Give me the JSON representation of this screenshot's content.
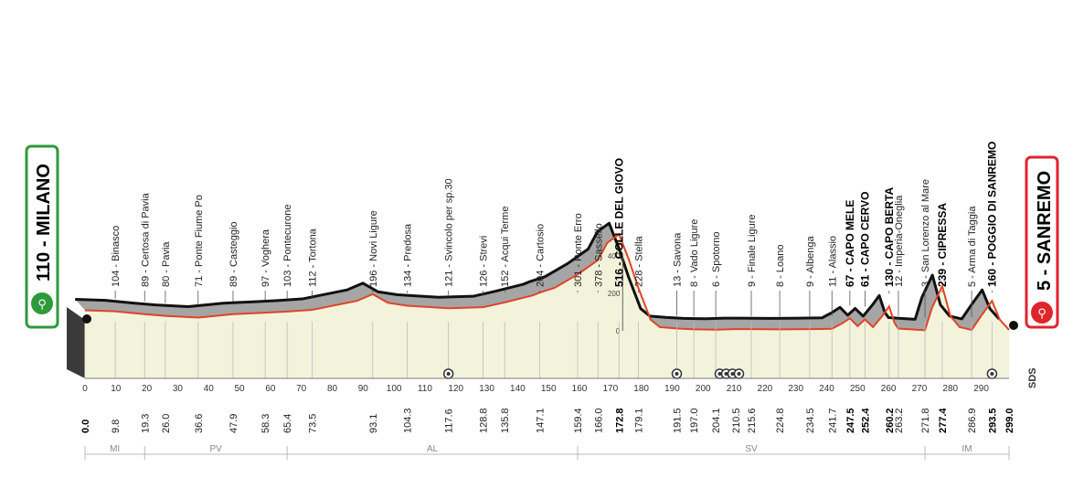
{
  "start": {
    "label": "110 - MILANO",
    "color": "#2e9a3a"
  },
  "finish": {
    "label": "5 - SANREMO",
    "color": "#e0242c"
  },
  "brand": "SDS",
  "altitude_ticks": [
    "400",
    "200",
    "0"
  ],
  "regions": [
    {
      "code": "MI",
      "from": 0,
      "to": 19.3
    },
    {
      "code": "PV",
      "from": 19.3,
      "to": 65.4
    },
    {
      "code": "AL",
      "from": 65.4,
      "to": 159.4
    },
    {
      "code": "SV",
      "from": 159.4,
      "to": 271.8
    },
    {
      "code": "IM",
      "from": 271.8,
      "to": 299
    }
  ],
  "chart_data": {
    "type": "area",
    "x_ticks": [
      0,
      10,
      20,
      30,
      40,
      50,
      60,
      70,
      80,
      90,
      100,
      110,
      120,
      130,
      140,
      150,
      160,
      170,
      180,
      190,
      200,
      210,
      220,
      230,
      240,
      250,
      260,
      270,
      280,
      290
    ],
    "cumulative_km": [
      {
        "km": "0.0",
        "bold": true
      },
      {
        "km": "9.8"
      },
      {
        "km": "19.3"
      },
      {
        "km": "26.0"
      },
      {
        "km": "36.6"
      },
      {
        "km": "47.9"
      },
      {
        "km": "58.3"
      },
      {
        "km": "65.4"
      },
      {
        "km": "73.5"
      },
      {
        "km": "93.1"
      },
      {
        "km": "104.3"
      },
      {
        "km": "117.6"
      },
      {
        "km": "128.8"
      },
      {
        "km": "135.8"
      },
      {
        "km": "147.1"
      },
      {
        "km": "159.4"
      },
      {
        "km": "166.0"
      },
      {
        "km": "172.8",
        "bold": true
      },
      {
        "km": "179.1"
      },
      {
        "km": "191.5"
      },
      {
        "km": "197.0"
      },
      {
        "km": "204.1"
      },
      {
        "km": "210.5"
      },
      {
        "km": "215.6"
      },
      {
        "km": "224.8"
      },
      {
        "km": "234.5"
      },
      {
        "km": "241.7"
      },
      {
        "km": "247.5",
        "bold": true
      },
      {
        "km": "252.4",
        "bold": true
      },
      {
        "km": "260.2",
        "bold": true
      },
      {
        "km": "263.2"
      },
      {
        "km": "271.8"
      },
      {
        "km": "277.4",
        "bold": true
      },
      {
        "km": "286.9"
      },
      {
        "km": "293.5",
        "bold": true
      },
      {
        "km": "299.0",
        "bold": true
      }
    ],
    "places": [
      {
        "km": 9.8,
        "label": "104 - Binasco"
      },
      {
        "km": 19.3,
        "label": "89 - Certosa di Pavia"
      },
      {
        "km": 26.0,
        "label": "80 - Pavia"
      },
      {
        "km": 36.6,
        "label": "71 - Ponte Fiume Po"
      },
      {
        "km": 47.9,
        "label": "89 - Casteggio"
      },
      {
        "km": 58.3,
        "label": "97 - Voghera"
      },
      {
        "km": 65.4,
        "label": "103 - Pontecurone"
      },
      {
        "km": 73.5,
        "label": "112 - Tortona"
      },
      {
        "km": 93.1,
        "label": "196 - Novi Ligure"
      },
      {
        "km": 104.3,
        "label": "134 - Predosa"
      },
      {
        "km": 117.6,
        "label": "121 - Svincolo per sp.30"
      },
      {
        "km": 128.8,
        "label": "126 - Strevi"
      },
      {
        "km": 135.8,
        "label": "152 - Acqui Terme"
      },
      {
        "km": 147.1,
        "label": "204 - Cartosio"
      },
      {
        "km": 159.4,
        "label": "301 - Ponte Erro"
      },
      {
        "km": 166.0,
        "label": "378 - Sassello"
      },
      {
        "km": 172.8,
        "label": "516 - COLLE DEL GIOVO",
        "climb": true
      },
      {
        "km": 179.1,
        "label": "228 - Stella"
      },
      {
        "km": 191.5,
        "label": "13 - Savona"
      },
      {
        "km": 197.0,
        "label": "8 - Vado Ligure"
      },
      {
        "km": 204.1,
        "label": "6 - Spotorno"
      },
      {
        "km": 215.6,
        "label": "9 - Finale Ligure"
      },
      {
        "km": 224.8,
        "label": "8 - Loano"
      },
      {
        "km": 234.5,
        "label": "9 - Albenga"
      },
      {
        "km": 241.7,
        "label": "11 - Alassio"
      },
      {
        "km": 247.5,
        "label": "67 - CAPO MELE",
        "climb": true
      },
      {
        "km": 252.4,
        "label": "61 - CAPO CERVO",
        "climb": true
      },
      {
        "km": 260.2,
        "label": "130 - CAPO BERTA",
        "climb": true
      },
      {
        "km": 263.2,
        "label": "12 - Imperia-Oneglia"
      },
      {
        "km": 271.8,
        "label": "3 - San Lorenzo al Mare"
      },
      {
        "km": 277.4,
        "label": "239 - CIPRESSA",
        "climb": true
      },
      {
        "km": 286.9,
        "label": "5 - Arma di Taggia"
      },
      {
        "km": 293.5,
        "label": "160 - POGGIO DI SANREMO",
        "climb": true
      }
    ],
    "altitude_profile": [
      [
        0,
        110
      ],
      [
        9.8,
        104
      ],
      [
        19.3,
        89
      ],
      [
        26,
        80
      ],
      [
        36.6,
        71
      ],
      [
        47.9,
        89
      ],
      [
        58.3,
        97
      ],
      [
        65.4,
        103
      ],
      [
        73.5,
        112
      ],
      [
        88,
        160
      ],
      [
        93.1,
        196
      ],
      [
        98,
        150
      ],
      [
        104.3,
        134
      ],
      [
        117.6,
        121
      ],
      [
        128.8,
        126
      ],
      [
        135.8,
        152
      ],
      [
        145,
        190
      ],
      [
        147.1,
        204
      ],
      [
        152,
        230
      ],
      [
        159.4,
        301
      ],
      [
        166,
        378
      ],
      [
        169,
        470
      ],
      [
        172.8,
        516
      ],
      [
        176,
        380
      ],
      [
        179.1,
        228
      ],
      [
        183,
        60
      ],
      [
        186,
        20
      ],
      [
        191.5,
        13
      ],
      [
        197,
        8
      ],
      [
        204.1,
        6
      ],
      [
        210,
        9
      ],
      [
        215.6,
        9
      ],
      [
        224.8,
        8
      ],
      [
        234.5,
        9
      ],
      [
        241.7,
        11
      ],
      [
        245,
        40
      ],
      [
        247.5,
        67
      ],
      [
        250,
        25
      ],
      [
        252.4,
        61
      ],
      [
        255,
        20
      ],
      [
        258,
        80
      ],
      [
        260.2,
        130
      ],
      [
        262,
        40
      ],
      [
        263.2,
        12
      ],
      [
        271.8,
        3
      ],
      [
        274,
        120
      ],
      [
        277.4,
        239
      ],
      [
        280,
        80
      ],
      [
        283,
        20
      ],
      [
        286.9,
        5
      ],
      [
        290,
        80
      ],
      [
        293.5,
        160
      ],
      [
        296,
        60
      ],
      [
        299,
        5
      ]
    ],
    "sprints": [
      {
        "km": 117.6,
        "count": 1
      },
      {
        "km": 191.5,
        "count": 1
      },
      {
        "km": 208.5,
        "count": 4
      },
      {
        "km": 293.5,
        "count": 1
      }
    ],
    "xlim": [
      0,
      299
    ],
    "ylim": [
      0,
      520
    ]
  }
}
